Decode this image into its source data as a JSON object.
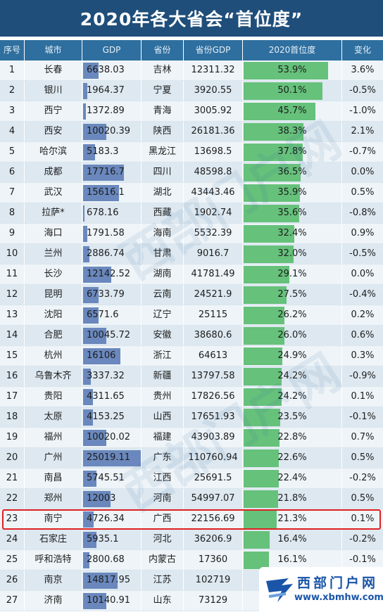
{
  "title": "2020年各大省会“首位度”",
  "headers": [
    "序号",
    "城市",
    "GDP",
    "省份",
    "省份GDP",
    "2020首位度",
    "变化"
  ],
  "chart_data": {
    "type": "table",
    "title": "2020年各大省会“首位度”",
    "columns": [
      "序号",
      "城市",
      "GDP",
      "省份",
      "省份GDP",
      "2020首位度",
      "变化"
    ],
    "rows": [
      {
        "rank": "1",
        "city": "长春",
        "gdp": "6638.03",
        "province": "吉林",
        "prov_gdp": "12311.32",
        "share": "53.9%",
        "change": "3.6%"
      },
      {
        "rank": "2",
        "city": "银川",
        "gdp": "1964.37",
        "province": "宁夏",
        "prov_gdp": "3920.55",
        "share": "50.1%",
        "change": "-0.5%"
      },
      {
        "rank": "3",
        "city": "西宁",
        "gdp": "1372.89",
        "province": "青海",
        "prov_gdp": "3005.92",
        "share": "45.7%",
        "change": "-1.0%"
      },
      {
        "rank": "4",
        "city": "西安",
        "gdp": "10020.39",
        "province": "陕西",
        "prov_gdp": "26181.36",
        "share": "38.3%",
        "change": "2.1%"
      },
      {
        "rank": "5",
        "city": "哈尔滨",
        "gdp": "5183.3",
        "province": "黑龙江",
        "prov_gdp": "13698.5",
        "share": "37.8%",
        "change": "-0.7%"
      },
      {
        "rank": "6",
        "city": "成都",
        "gdp": "17716.7",
        "province": "四川",
        "prov_gdp": "48598.8",
        "share": "36.5%",
        "change": "0.0%"
      },
      {
        "rank": "7",
        "city": "武汉",
        "gdp": "15616.1",
        "province": "湖北",
        "prov_gdp": "43443.46",
        "share": "35.9%",
        "change": "0.5%"
      },
      {
        "rank": "8",
        "city": "拉萨*",
        "gdp": "678.16",
        "province": "西藏",
        "prov_gdp": "1902.74",
        "share": "35.6%",
        "change": "-0.8%"
      },
      {
        "rank": "9",
        "city": "海口",
        "gdp": "1791.58",
        "province": "海南",
        "prov_gdp": "5532.39",
        "share": "32.4%",
        "change": "0.9%"
      },
      {
        "rank": "10",
        "city": "兰州",
        "gdp": "2886.74",
        "province": "甘肃",
        "prov_gdp": "9016.7",
        "share": "32.0%",
        "change": "-0.5%"
      },
      {
        "rank": "11",
        "city": "长沙",
        "gdp": "12142.52",
        "province": "湖南",
        "prov_gdp": "41781.49",
        "share": "29.1%",
        "change": "0.0%"
      },
      {
        "rank": "12",
        "city": "昆明",
        "gdp": "6733.79",
        "province": "云南",
        "prov_gdp": "24521.9",
        "share": "27.5%",
        "change": "-0.4%"
      },
      {
        "rank": "13",
        "city": "沈阳",
        "gdp": "6571.6",
        "province": "辽宁",
        "prov_gdp": "25115",
        "share": "26.2%",
        "change": "0.2%"
      },
      {
        "rank": "14",
        "city": "合肥",
        "gdp": "10045.72",
        "province": "安徽",
        "prov_gdp": "38680.6",
        "share": "26.0%",
        "change": "0.6%"
      },
      {
        "rank": "15",
        "city": "杭州",
        "gdp": "16106",
        "province": "浙江",
        "prov_gdp": "64613",
        "share": "24.9%",
        "change": "0.3%"
      },
      {
        "rank": "16",
        "city": "乌鲁木齐",
        "gdp": "3337.32",
        "province": "新疆",
        "prov_gdp": "13797.58",
        "share": "24.2%",
        "change": "-0.9%"
      },
      {
        "rank": "17",
        "city": "贵阳",
        "gdp": "4311.65",
        "province": "贵州",
        "prov_gdp": "17826.56",
        "share": "24.2%",
        "change": "0.1%"
      },
      {
        "rank": "18",
        "city": "太原",
        "gdp": "4153.25",
        "province": "山西",
        "prov_gdp": "17651.93",
        "share": "23.5%",
        "change": "-0.1%"
      },
      {
        "rank": "19",
        "city": "福州",
        "gdp": "10020.02",
        "province": "福建",
        "prov_gdp": "43903.89",
        "share": "22.8%",
        "change": "0.7%"
      },
      {
        "rank": "20",
        "city": "广州",
        "gdp": "25019.11",
        "province": "广东",
        "prov_gdp": "110760.94",
        "share": "22.6%",
        "change": "0.5%"
      },
      {
        "rank": "21",
        "city": "南昌",
        "gdp": "5745.51",
        "province": "江西",
        "prov_gdp": "25691.5",
        "share": "22.4%",
        "change": "-0.2%"
      },
      {
        "rank": "22",
        "city": "郑州",
        "gdp": "12003",
        "province": "河南",
        "prov_gdp": "54997.07",
        "share": "21.8%",
        "change": "0.5%"
      },
      {
        "rank": "23",
        "city": "南宁",
        "gdp": "4726.34",
        "province": "广西",
        "prov_gdp": "22156.69",
        "share": "21.3%",
        "change": "0.1%"
      },
      {
        "rank": "24",
        "city": "石家庄",
        "gdp": "5935.1",
        "province": "河北",
        "prov_gdp": "36206.9",
        "share": "16.4%",
        "change": "-0.2%"
      },
      {
        "rank": "25",
        "city": "呼和浩特",
        "gdp": "2800.68",
        "province": "内蒙古",
        "prov_gdp": "17360",
        "share": "16.1%",
        "change": "-0.1%"
      },
      {
        "rank": "26",
        "city": "南京",
        "gdp": "14817.95",
        "province": "江苏",
        "prov_gdp": "102719",
        "share": "",
        "change": ""
      },
      {
        "rank": "27",
        "city": "济南",
        "gdp": "10140.91",
        "province": "山东",
        "prov_gdp": "73129",
        "share": "",
        "change": ""
      }
    ],
    "highlighted_row": 23,
    "colors": {
      "title_bg": "#1f4e7a",
      "header_bg": "#2e6f9f",
      "gdp_bar": "#6a88bd",
      "share_bar": "#66c17b",
      "highlight": "#e02020"
    }
  },
  "watermark_text": [
    "西部门户网",
    "西部门户网"
  ],
  "logo": {
    "name": "西部门户网",
    "url": "www.xbmhw.com"
  }
}
